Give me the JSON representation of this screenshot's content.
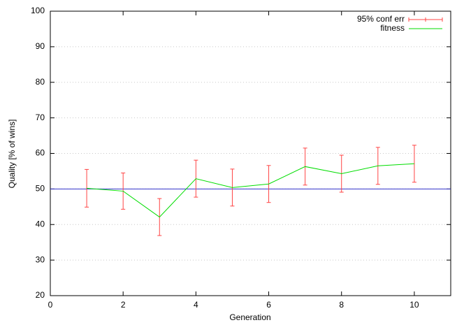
{
  "chart_data": {
    "type": "line",
    "x_label": "Generation",
    "y_label": "Quality [% of wins]",
    "x": [
      1,
      2,
      3,
      4,
      5,
      6,
      7,
      8,
      9,
      10
    ],
    "series": [
      {
        "name": "fitness",
        "color": "#00dd00",
        "values": [
          50.2,
          49.4,
          42.1,
          52.9,
          50.4,
          51.4,
          56.3,
          54.3,
          56.5,
          57.1
        ],
        "errors": [
          5.3,
          5.1,
          5.2,
          5.2,
          5.2,
          5.2,
          5.2,
          5.2,
          5.2,
          5.2
        ]
      }
    ],
    "error_legend": "95% conf err",
    "error_color": "#ff4444",
    "reference_line": 50,
    "reference_color": "#3333cc",
    "xlim": [
      0,
      11
    ],
    "xticks": [
      0,
      2,
      4,
      6,
      8,
      10
    ],
    "ylim": [
      20,
      100
    ],
    "yticks": [
      20,
      30,
      40,
      50,
      60,
      70,
      80,
      90,
      100
    ],
    "grid": "y",
    "legend": "top-right"
  }
}
